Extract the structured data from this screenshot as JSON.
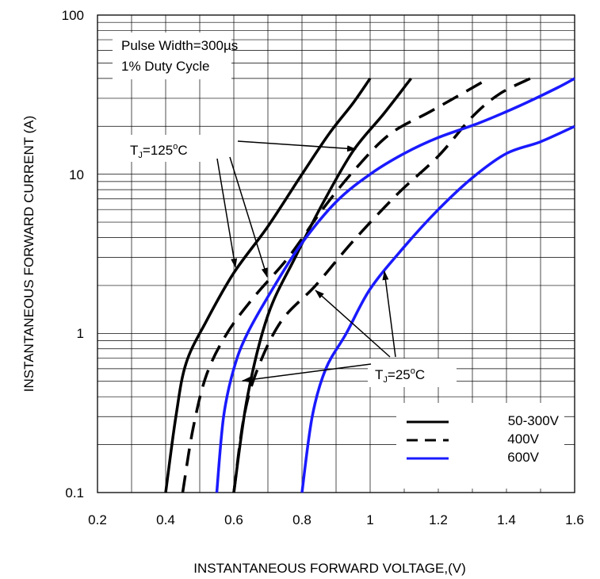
{
  "chart_data": {
    "type": "line",
    "title": "",
    "xlabel": "INSTANTANEOUS FORWARD VOLTAGE,(V)",
    "ylabel": "INSTANTANEOUS FORWARD CURRENT (A)",
    "xlim": [
      0.2,
      1.6
    ],
    "ylim": [
      0.1,
      100
    ],
    "yscale": "log",
    "grid": true,
    "x_ticks": [
      "0.2",
      "0.4",
      "0.6",
      "0.8",
      "1",
      "1.2",
      "1.4",
      "1.6"
    ],
    "y_ticks": [
      "0.1",
      "1",
      "10",
      "100"
    ],
    "annotation_box": {
      "line1": "Pulse Width=300µs",
      "line2": "1% Duty Cycle"
    },
    "tj_125": {
      "prefix": "T",
      "sub": "J",
      "value": "=125",
      "sup": "o",
      "unit": "C"
    },
    "tj_25": {
      "prefix": "T",
      "sub": "J",
      "value": "=25",
      "sup": "o",
      "unit": "C"
    },
    "legend": {
      "position": "bottom-right",
      "entries": [
        {
          "label": "50-300V",
          "style": "solid",
          "color": "#000000"
        },
        {
          "label": "400V",
          "style": "dashed",
          "color": "#000000"
        },
        {
          "label": "600V",
          "style": "solid",
          "color": "#1a1aff"
        }
      ]
    },
    "series": [
      {
        "group": "50-300V",
        "tj": "125",
        "style": "solid",
        "color": "#000000",
        "points": [
          [
            0.4,
            0.1
          ],
          [
            0.43,
            0.3
          ],
          [
            0.46,
            0.65
          ],
          [
            0.52,
            1.2
          ],
          [
            0.6,
            2.4
          ],
          [
            0.7,
            4.7
          ],
          [
            0.8,
            10
          ],
          [
            0.88,
            18
          ],
          [
            0.95,
            28
          ],
          [
            1.0,
            40
          ]
        ]
      },
      {
        "group": "50-300V",
        "tj": "25",
        "style": "solid",
        "color": "#000000",
        "points": [
          [
            0.6,
            0.1
          ],
          [
            0.64,
            0.4
          ],
          [
            0.7,
            1.3
          ],
          [
            0.78,
            3.0
          ],
          [
            0.86,
            6.5
          ],
          [
            0.95,
            14
          ],
          [
            1.04,
            24
          ],
          [
            1.12,
            40
          ]
        ]
      },
      {
        "group": "400V",
        "tj": "125",
        "style": "dashed",
        "color": "#000000",
        "points": [
          [
            0.45,
            0.1
          ],
          [
            0.48,
            0.25
          ],
          [
            0.52,
            0.55
          ],
          [
            0.58,
            1.0
          ],
          [
            0.66,
            1.7
          ],
          [
            0.76,
            3.0
          ],
          [
            0.86,
            6.0
          ],
          [
            0.96,
            11
          ],
          [
            1.06,
            18
          ],
          [
            1.18,
            25
          ],
          [
            1.33,
            38
          ]
        ]
      },
      {
        "group": "400V",
        "tj": "25",
        "style": "dashed",
        "color": "#000000",
        "points": [
          [
            0.6,
            0.1
          ],
          [
            0.63,
            0.3
          ],
          [
            0.67,
            0.6
          ],
          [
            0.74,
            1.2
          ],
          [
            0.84,
            2.0
          ],
          [
            0.95,
            3.8
          ],
          [
            1.08,
            7.5
          ],
          [
            1.2,
            13
          ],
          [
            1.3,
            23
          ],
          [
            1.38,
            32
          ],
          [
            1.47,
            40
          ]
        ]
      },
      {
        "group": "600V",
        "tj": "125",
        "style": "solid",
        "color": "#1a1aff",
        "points": [
          [
            0.55,
            0.1
          ],
          [
            0.57,
            0.3
          ],
          [
            0.6,
            0.6
          ],
          [
            0.64,
            1.0
          ],
          [
            0.72,
            2.0
          ],
          [
            0.8,
            3.7
          ],
          [
            0.9,
            6.7
          ],
          [
            1.0,
            10
          ],
          [
            1.1,
            13.5
          ],
          [
            1.2,
            17
          ],
          [
            1.32,
            21
          ],
          [
            1.44,
            27
          ],
          [
            1.55,
            35
          ],
          [
            1.6,
            40
          ]
        ]
      },
      {
        "group": "600V",
        "tj": "25",
        "style": "solid",
        "color": "#1a1aff",
        "points": [
          [
            0.8,
            0.1
          ],
          [
            0.83,
            0.3
          ],
          [
            0.87,
            0.6
          ],
          [
            0.93,
            1.0
          ],
          [
            1.0,
            1.9
          ],
          [
            1.1,
            3.5
          ],
          [
            1.2,
            6.0
          ],
          [
            1.3,
            9.5
          ],
          [
            1.4,
            13.5
          ],
          [
            1.5,
            16
          ],
          [
            1.6,
            20
          ]
        ]
      }
    ]
  }
}
